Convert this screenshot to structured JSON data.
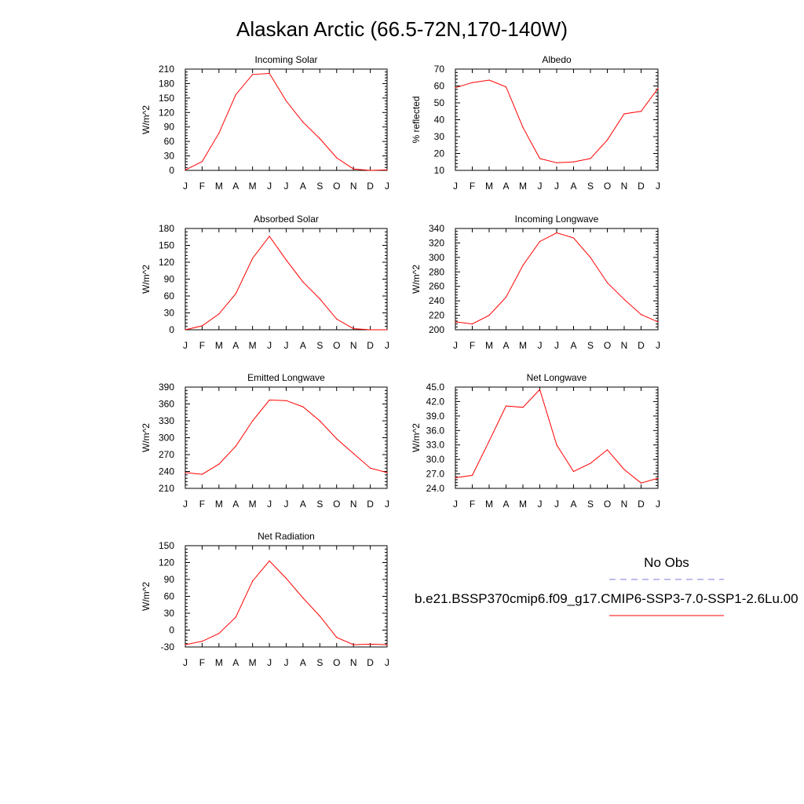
{
  "page_title": "Alaskan Arctic (66.5-72N,170-140W)",
  "legend": {
    "obs_label": "No Obs",
    "model_label": "b.e21.BSSP370cmip6.f09_g17.CMIP6-SSP3-7.0-SSP1-2.6Lu.00",
    "obs_color": "#7b7bdc",
    "model_color": "#ff0000"
  },
  "chart_data": [
    {
      "id": "incoming-solar",
      "type": "line",
      "title": "Incoming Solar",
      "ylabel": "W/m^2",
      "xlabel": "",
      "categories": [
        "J",
        "F",
        "M",
        "A",
        "M",
        "J",
        "J",
        "A",
        "S",
        "O",
        "N",
        "D",
        "J"
      ],
      "ylim": [
        0,
        210
      ],
      "yticks": [
        "0",
        "30",
        "60",
        "90",
        "120",
        "150",
        "180",
        "210"
      ],
      "series": [
        {
          "color": "#ff0000",
          "values": [
            1,
            18,
            77,
            157,
            199,
            201,
            144,
            100,
            66,
            26,
            3,
            0,
            1
          ]
        }
      ]
    },
    {
      "id": "albedo",
      "type": "line",
      "title": "Albedo",
      "ylabel": "% reflected",
      "xlabel": "",
      "categories": [
        "J",
        "F",
        "M",
        "A",
        "M",
        "J",
        "J",
        "A",
        "S",
        "O",
        "N",
        "D",
        "J"
      ],
      "ylim": [
        10,
        70
      ],
      "yticks": [
        "10",
        "20",
        "30",
        "40",
        "50",
        "60",
        "70"
      ],
      "series": [
        {
          "color": "#ff0000",
          "values": [
            59,
            62,
            63.5,
            59.5,
            35.5,
            17,
            14.5,
            15,
            17,
            28,
            43.5,
            45,
            58.5
          ]
        }
      ]
    },
    {
      "id": "absorbed-solar",
      "type": "line",
      "title": "Absorbed Solar",
      "ylabel": "W/m^2",
      "xlabel": "",
      "categories": [
        "J",
        "F",
        "M",
        "A",
        "M",
        "J",
        "J",
        "A",
        "S",
        "O",
        "N",
        "D",
        "J"
      ],
      "ylim": [
        0,
        180
      ],
      "yticks": [
        "0",
        "30",
        "60",
        "90",
        "120",
        "150",
        "180"
      ],
      "series": [
        {
          "color": "#ff0000",
          "values": [
            0,
            7,
            28,
            64,
            127,
            166,
            124,
            85,
            55,
            19,
            2,
            0,
            0
          ]
        }
      ]
    },
    {
      "id": "incoming-longwave",
      "type": "line",
      "title": "Incoming Longwave",
      "ylabel": "W/m^2",
      "xlabel": "",
      "categories": [
        "J",
        "F",
        "M",
        "A",
        "M",
        "J",
        "J",
        "A",
        "S",
        "O",
        "N",
        "D",
        "J"
      ],
      "ylim": [
        200,
        340
      ],
      "yticks": [
        "200",
        "220",
        "240",
        "260",
        "280",
        "300",
        "320",
        "340"
      ],
      "series": [
        {
          "color": "#ff0000",
          "values": [
            211,
            208,
            220,
            245,
            289,
            322,
            334,
            327,
            300,
            265,
            242,
            221,
            211
          ]
        }
      ]
    },
    {
      "id": "emitted-longwave",
      "type": "line",
      "title": "Emitted Longwave",
      "ylabel": "W/m^2",
      "xlabel": "",
      "categories": [
        "J",
        "F",
        "M",
        "A",
        "M",
        "J",
        "J",
        "A",
        "S",
        "O",
        "N",
        "D",
        "J"
      ],
      "ylim": [
        210,
        390
      ],
      "yticks": [
        "210",
        "240",
        "270",
        "300",
        "330",
        "360",
        "390"
      ],
      "series": [
        {
          "color": "#ff0000",
          "values": [
            238,
            235,
            253,
            285,
            330,
            367,
            366,
            355,
            330,
            298,
            272,
            246,
            238
          ]
        }
      ]
    },
    {
      "id": "net-longwave",
      "type": "line",
      "title": "Net Longwave",
      "ylabel": "W/m^2",
      "xlabel": "",
      "categories": [
        "J",
        "F",
        "M",
        "A",
        "M",
        "J",
        "J",
        "A",
        "S",
        "O",
        "N",
        "D",
        "J"
      ],
      "ylim": [
        24,
        45
      ],
      "yticks": [
        "24.0",
        "27.0",
        "30.0",
        "33.0",
        "36.0",
        "39.0",
        "42.0",
        "45.0"
      ],
      "series": [
        {
          "color": "#ff0000",
          "values": [
            26.2,
            26.7,
            33.8,
            41.1,
            40.8,
            44.5,
            33.0,
            27.5,
            29.2,
            32.0,
            27.9,
            25.1,
            26.1
          ]
        }
      ]
    },
    {
      "id": "net-radiation",
      "type": "line",
      "title": "Net Radiation",
      "ylabel": "W/m^2",
      "xlabel": "",
      "categories": [
        "J",
        "F",
        "M",
        "A",
        "M",
        "J",
        "J",
        "A",
        "S",
        "O",
        "N",
        "D",
        "J"
      ],
      "ylim": [
        -30,
        150
      ],
      "yticks": [
        "-30",
        "0",
        "30",
        "60",
        "90",
        "120",
        "150"
      ],
      "series": [
        {
          "color": "#ff0000",
          "values": [
            -26,
            -20,
            -6,
            23,
            87,
            123,
            92,
            57,
            25,
            -13,
            -26,
            -25,
            -26
          ]
        }
      ]
    }
  ]
}
